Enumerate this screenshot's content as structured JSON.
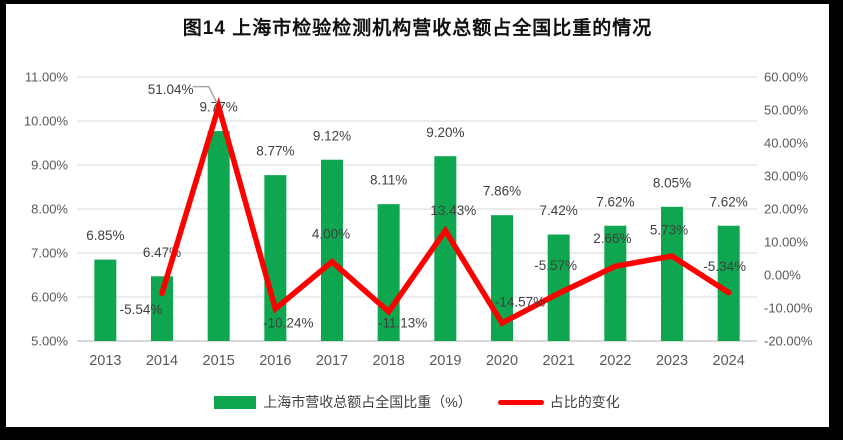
{
  "title": "图14 上海市检验检测机构营收总额占全国比重的情况",
  "chart_data": {
    "type": "combo",
    "title": "图14 上海市检验检测机构营收总额占全国比重的情况",
    "categories": [
      "2013",
      "2014",
      "2015",
      "2016",
      "2017",
      "2018",
      "2019",
      "2020",
      "2021",
      "2022",
      "2023",
      "2024"
    ],
    "series": [
      {
        "name": "上海市营收总额占全国比重（%）",
        "type": "bar",
        "axis": "left",
        "color": "#0EA64E",
        "values": [
          6.85,
          6.47,
          9.77,
          8.77,
          9.12,
          8.11,
          9.2,
          7.86,
          7.42,
          7.62,
          8.05,
          7.62
        ],
        "labels": [
          "6.85%",
          "6.47%",
          "9.77%",
          "8.77%",
          "9.12%",
          "8.11%",
          "9.20%",
          "7.86%",
          "7.42%",
          "7.62%",
          "8.05%",
          "7.62%"
        ]
      },
      {
        "name": "占比的变化",
        "type": "line",
        "axis": "right",
        "color": "#FF0000",
        "values": [
          null,
          -5.54,
          51.04,
          -10.24,
          4.0,
          -11.13,
          13.43,
          -14.57,
          -5.57,
          2.66,
          5.73,
          -5.34
        ],
        "labels": [
          null,
          "-5.54%",
          "51.04%",
          "-10.24%",
          "4.00%",
          "-11.13%",
          "13.43%",
          "-14.57%",
          "-5.57%",
          "2.66%",
          "5.73%",
          "-5.34%"
        ]
      }
    ],
    "left_axis": {
      "min": 5,
      "max": 11,
      "step": 1,
      "ticks": [
        "5.00%",
        "6.00%",
        "7.00%",
        "8.00%",
        "9.00%",
        "10.00%",
        "11.00%"
      ]
    },
    "right_axis": {
      "min": -20,
      "max": 60,
      "step": 10,
      "ticks": [
        "-20.00%",
        "-10.00%",
        "0.00%",
        "10.00%",
        "20.00%",
        "30.00%",
        "40.00%",
        "50.00%",
        "60.00%"
      ]
    },
    "grid": "horizontal-only",
    "legend_position": "bottom",
    "callout": {
      "category": "2015",
      "index": 2,
      "text": "51.04%"
    },
    "style_colors": {
      "gridline": "#D9D9D9",
      "axis_line": "#C9C9C9",
      "axis_text": "#595959",
      "data_label_text": "#404040",
      "callout_leader": "#A6A6A6"
    }
  },
  "legend": {
    "bar_label": "上海市营收总额占全国比重（%）",
    "line_label": "占比的变化"
  }
}
